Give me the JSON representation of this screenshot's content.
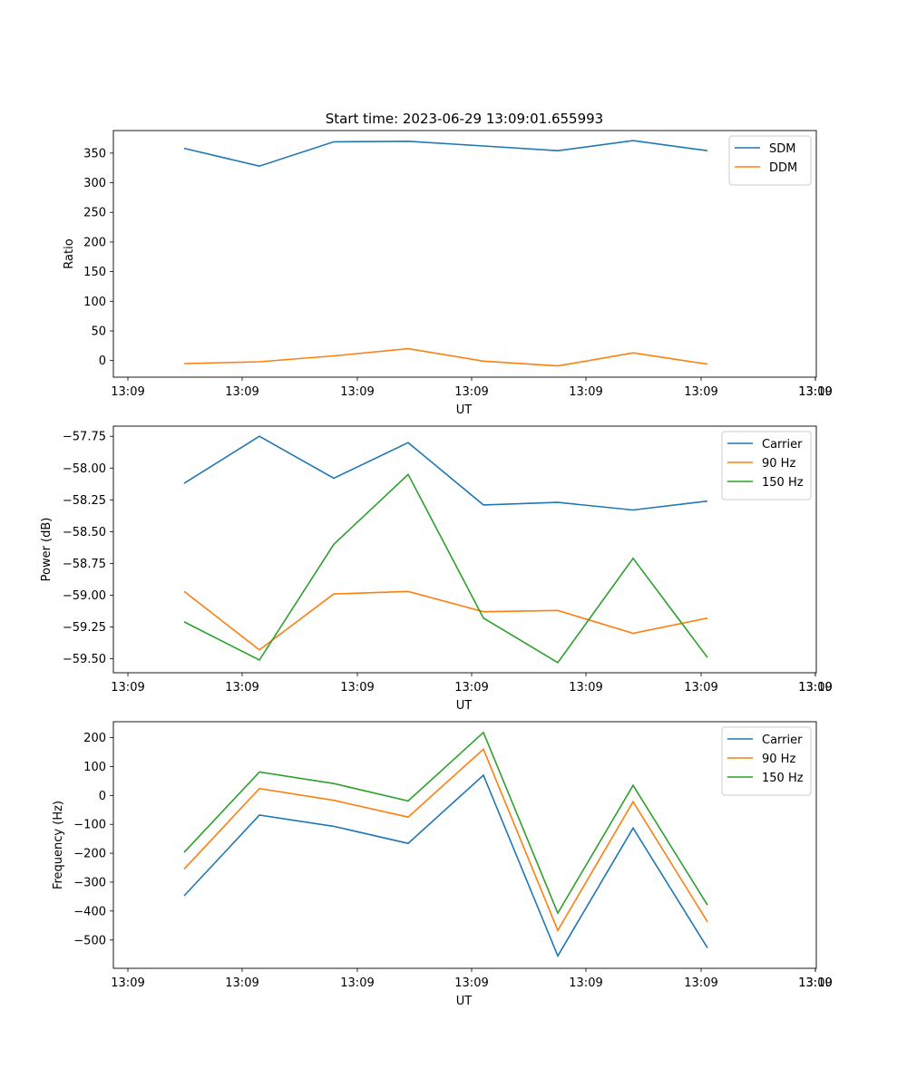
{
  "figure": {
    "title": "Start time: 2023-06-29 13:09:01.655993"
  },
  "chart_data": [
    {
      "type": "line",
      "title": "",
      "xlabel": "UT",
      "ylabel": "Ratio",
      "x_tick_labels": [
        "13:09",
        "13:09",
        "13:09",
        "13:09",
        "13:09",
        "13:09",
        "13:09",
        "13:10"
      ],
      "y_ticks": [
        0,
        50,
        100,
        150,
        200,
        250,
        300,
        350
      ],
      "y_tick_labels": [
        "0",
        "50",
        "100",
        "150",
        "200",
        "250",
        "300",
        "350"
      ],
      "ylim": [
        -28,
        388
      ],
      "legend": "top-right",
      "grid": false,
      "x": [
        1,
        2,
        3,
        4,
        5,
        6,
        7,
        8
      ],
      "series": [
        {
          "name": "SDM",
          "color": "#1f77b4",
          "values": [
            358,
            328,
            369,
            370,
            362,
            354,
            371,
            354
          ]
        },
        {
          "name": "DDM",
          "color": "#ff7f0e",
          "values": [
            -5,
            -2,
            8,
            20,
            -1,
            -9,
            13,
            -6
          ]
        }
      ]
    },
    {
      "type": "line",
      "title": "",
      "xlabel": "UT",
      "ylabel": "Power (dB)",
      "x_tick_labels": [
        "13:09",
        "13:09",
        "13:09",
        "13:09",
        "13:09",
        "13:09",
        "13:09",
        "13:10"
      ],
      "y_ticks": [
        -59.5,
        -59.25,
        -59.0,
        -58.75,
        -58.5,
        -58.25,
        -58.0,
        -57.75
      ],
      "y_tick_labels": [
        "−59.50",
        "−59.25",
        "−59.00",
        "−58.75",
        "−58.50",
        "−58.25",
        "−58.00",
        "−57.75"
      ],
      "ylim": [
        -59.61,
        -57.67
      ],
      "legend": "top-right",
      "grid": false,
      "x": [
        1,
        2,
        3,
        4,
        5,
        6,
        7,
        8
      ],
      "series": [
        {
          "name": "Carrier",
          "color": "#1f77b4",
          "values": [
            -58.12,
            -57.75,
            -58.08,
            -57.8,
            -58.29,
            -58.27,
            -58.33,
            -58.26
          ]
        },
        {
          "name": "90 Hz",
          "color": "#ff7f0e",
          "values": [
            -58.97,
            -59.43,
            -58.99,
            -58.97,
            -59.13,
            -59.12,
            -59.3,
            -59.18
          ]
        },
        {
          "name": "150 Hz",
          "color": "#2ca02c",
          "values": [
            -59.21,
            -59.51,
            -58.6,
            -58.05,
            -59.18,
            -59.53,
            -58.71,
            -59.49
          ]
        }
      ]
    },
    {
      "type": "line",
      "title": "",
      "xlabel": "UT",
      "ylabel": "Frequency (Hz)",
      "x_tick_labels": [
        "13:09",
        "13:09",
        "13:09",
        "13:09",
        "13:09",
        "13:09",
        "13:09",
        "13:10"
      ],
      "y_ticks": [
        -500,
        -400,
        -300,
        -200,
        -100,
        0,
        100,
        200
      ],
      "y_tick_labels": [
        "−500",
        "−400",
        "−300",
        "−200",
        "−100",
        "0",
        "100",
        "200"
      ],
      "ylim": [
        -598,
        255
      ],
      "legend": "top-right",
      "grid": false,
      "x": [
        1,
        2,
        3,
        4,
        5,
        6,
        7,
        8
      ],
      "series": [
        {
          "name": "Carrier",
          "color": "#1f77b4",
          "values": [
            -347,
            -68,
            -107,
            -166,
            70,
            -555,
            -113,
            -527
          ]
        },
        {
          "name": "90 Hz",
          "color": "#ff7f0e",
          "values": [
            -255,
            24,
            -17,
            -75,
            160,
            -467,
            -22,
            -437
          ]
        },
        {
          "name": "150 Hz",
          "color": "#2ca02c",
          "values": [
            -197,
            81,
            41,
            -19,
            218,
            -407,
            35,
            -379
          ]
        }
      ]
    }
  ]
}
